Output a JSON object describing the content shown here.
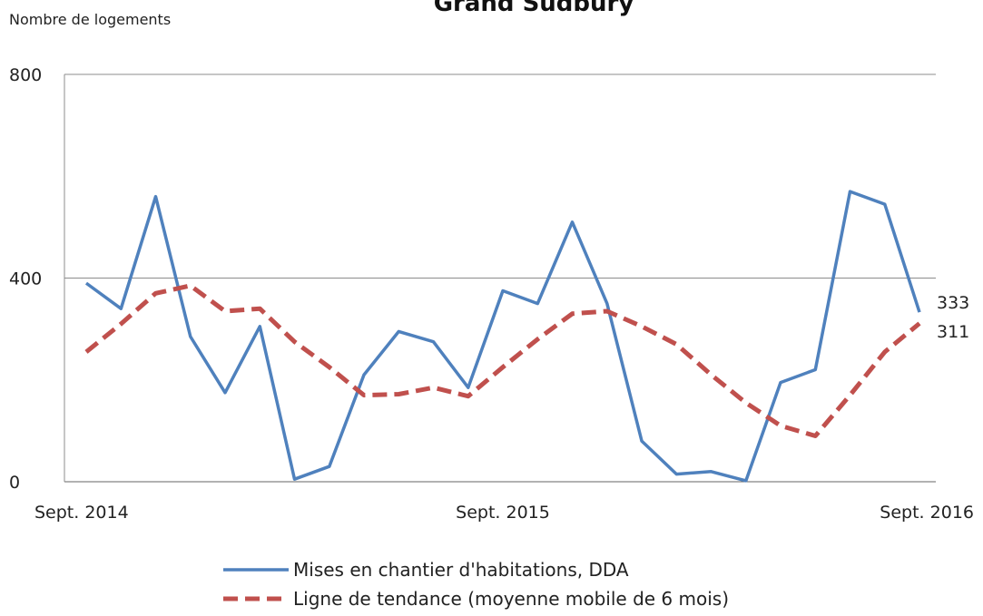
{
  "chart_data": {
    "type": "line",
    "title": "Grand Sudbury",
    "ylabel": "Nombre de logements",
    "xlabel": "",
    "ylim": [
      0,
      800
    ],
    "y_ticks": [
      "0",
      "400",
      "800"
    ],
    "x_tick_labels": [
      "Sept. 2014",
      "Sept. 2015",
      "Sept. 2016"
    ],
    "grid": true,
    "legend_position": "bottom",
    "x": [
      "2014-09",
      "2014-10",
      "2014-11",
      "2014-12",
      "2015-01",
      "2015-02",
      "2015-03",
      "2015-04",
      "2015-05",
      "2015-06",
      "2015-07",
      "2015-08",
      "2015-09",
      "2015-10",
      "2015-11",
      "2015-12",
      "2016-01",
      "2016-02",
      "2016-03",
      "2016-04",
      "2016-05",
      "2016-06",
      "2016-07",
      "2016-08",
      "2016-09"
    ],
    "series": [
      {
        "name": "Mises en chantier d'habitations, DDA",
        "color": "#4f81bd",
        "style": "solid",
        "end_label": "333",
        "values": [
          390,
          340,
          560,
          285,
          175,
          305,
          5,
          30,
          210,
          295,
          275,
          185,
          375,
          350,
          510,
          350,
          80,
          15,
          20,
          2,
          195,
          220,
          570,
          545,
          333
        ]
      },
      {
        "name": "Ligne de tendance (moyenne mobile de 6 mois)",
        "color": "#c0504d",
        "style": "dashed",
        "end_label": "311",
        "values": [
          255,
          310,
          370,
          385,
          335,
          340,
          275,
          225,
          170,
          172,
          185,
          168,
          225,
          280,
          330,
          335,
          305,
          270,
          210,
          155,
          110,
          90,
          170,
          255,
          311
        ]
      }
    ]
  }
}
